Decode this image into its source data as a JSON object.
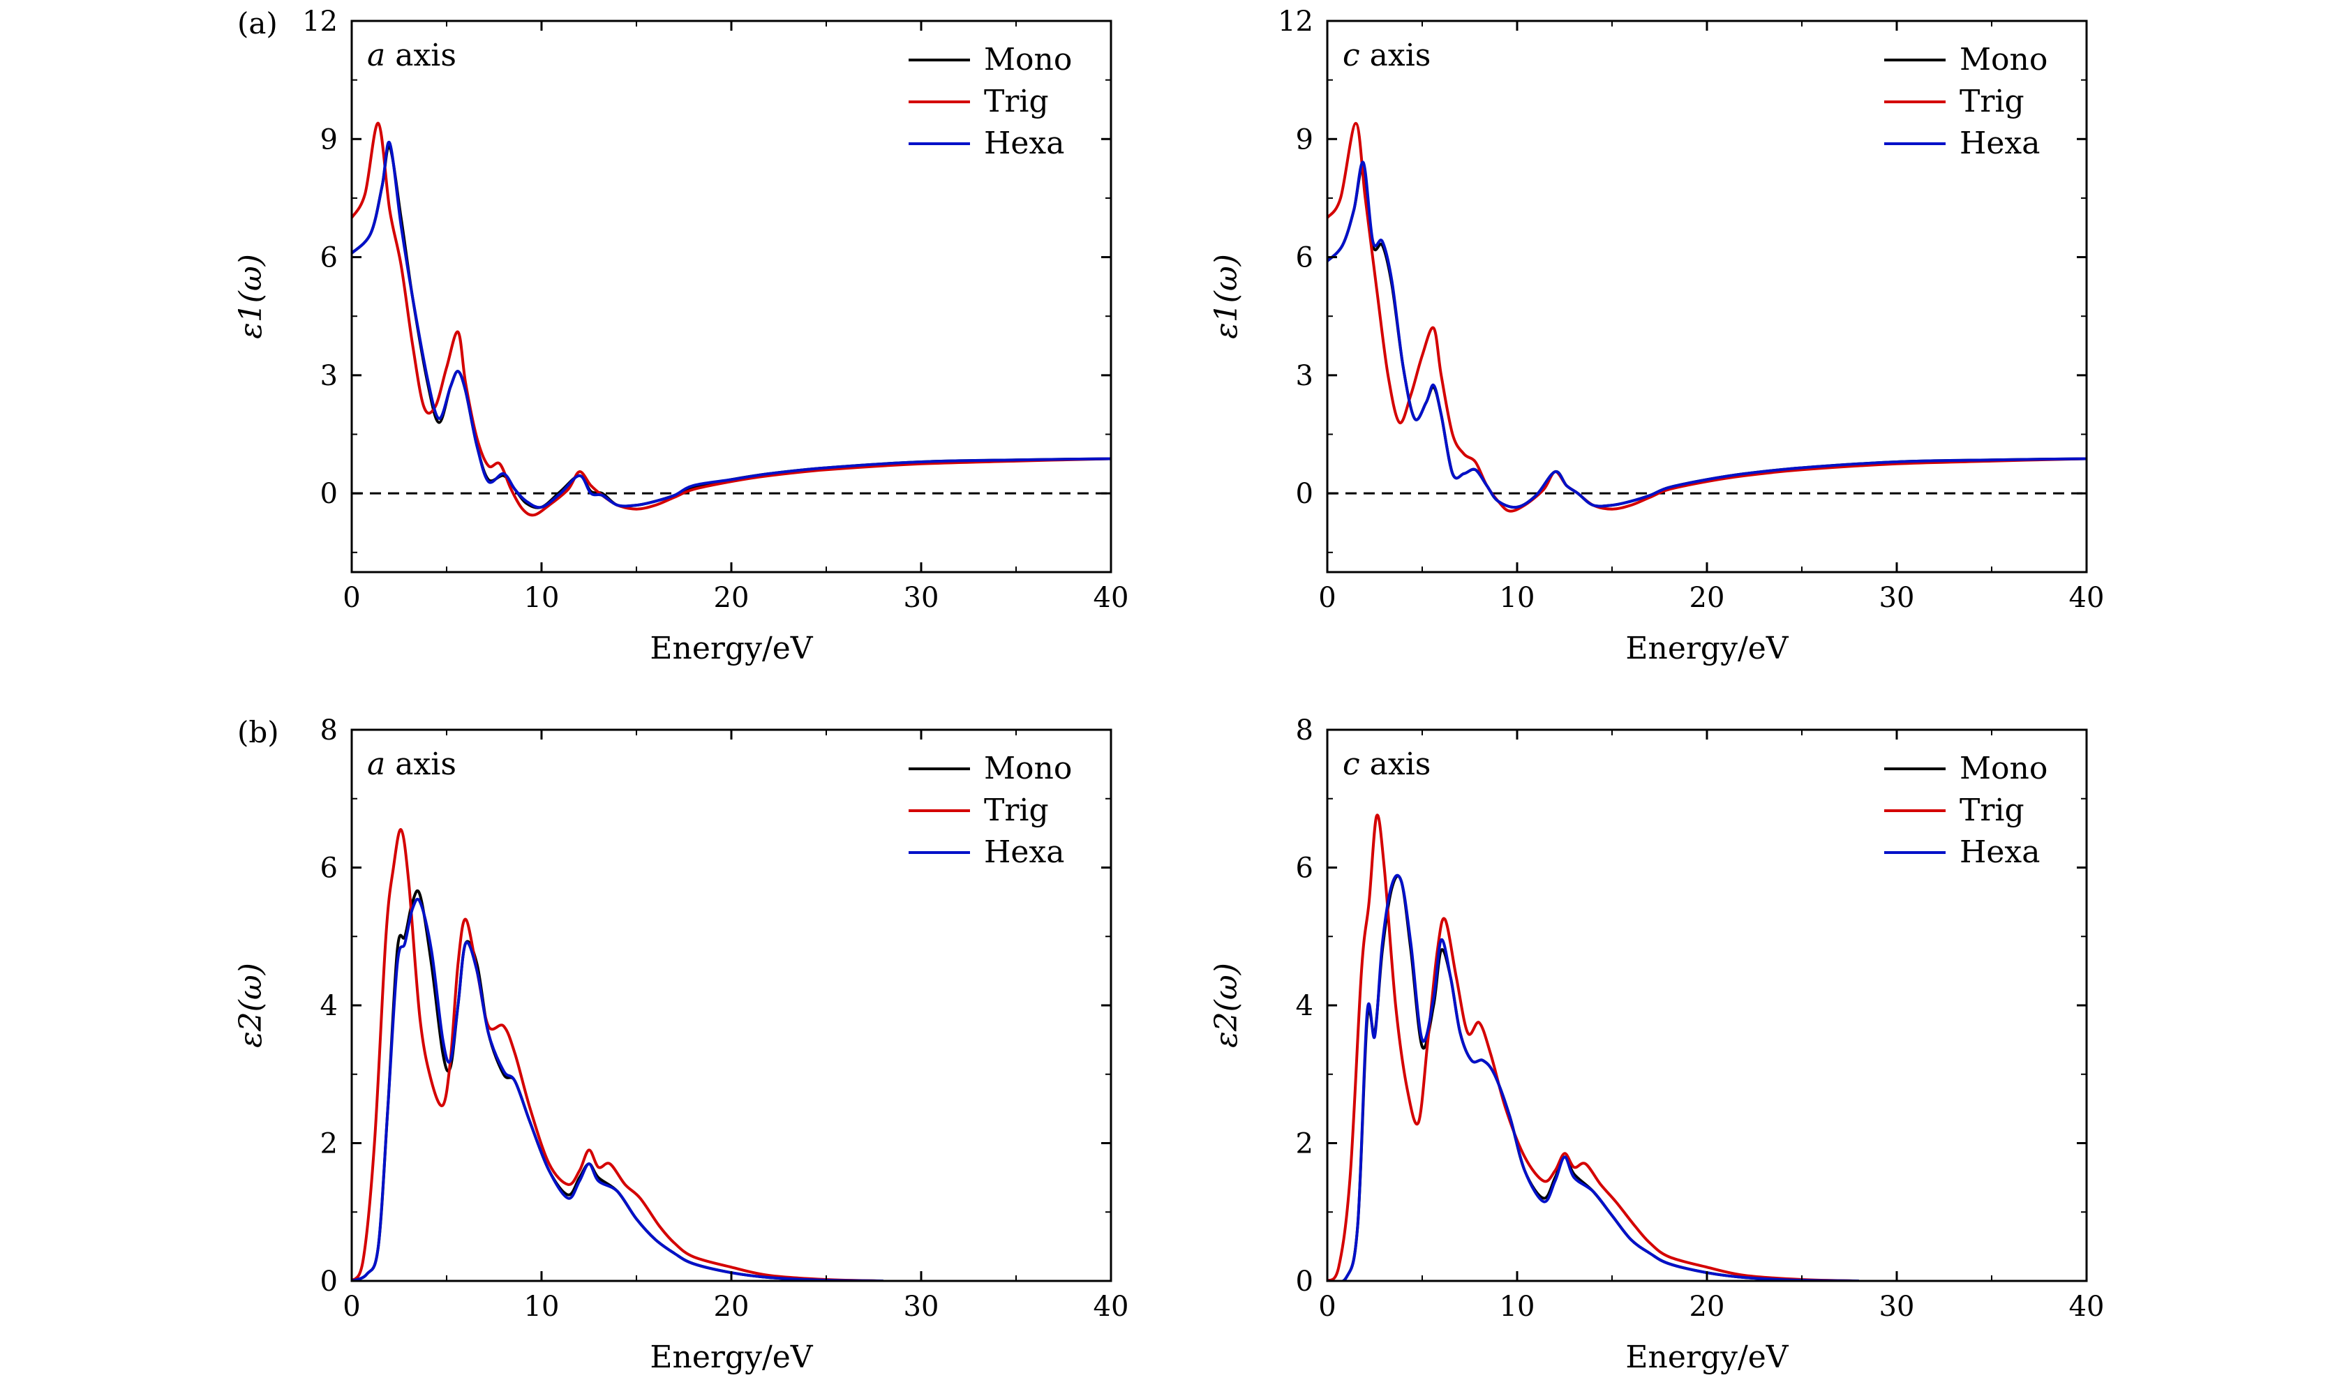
{
  "figure_labels": {
    "a": "(a)",
    "b": "(b)"
  },
  "legend": [
    {
      "name": "Mono",
      "color": "#000000"
    },
    {
      "name": "Trig",
      "color": "#d40000"
    },
    {
      "name": "Hexa",
      "color": "#0010c8"
    }
  ],
  "chart_data": [
    {
      "type": "line",
      "caption_italic": "a",
      "caption_rest": " axis",
      "xlabel": "Energy/eV",
      "ylabel": "ε1(ω)",
      "xlim": [
        0,
        40
      ],
      "ylim": [
        -2,
        12
      ],
      "xticks": [
        "0",
        "10",
        "20",
        "30",
        "40"
      ],
      "yticks": [
        "0",
        "3",
        "6",
        "9",
        "12"
      ],
      "reference_line_y": 0,
      "series": [
        {
          "name": "Mono",
          "x": [
            0,
            1,
            1.6,
            2,
            2.6,
            3.2,
            4,
            4.6,
            5.2,
            5.6,
            6,
            6.6,
            7.2,
            8,
            8.6,
            9.2,
            10,
            11,
            12,
            12.6,
            13.2,
            14,
            15,
            16,
            17,
            18,
            20,
            22,
            25,
            30,
            35,
            40
          ],
          "y": [
            6.1,
            6.6,
            7.8,
            8.8,
            7.0,
            5.0,
            2.8,
            1.8,
            2.7,
            3.1,
            2.6,
            1.2,
            0.35,
            0.45,
            0.1,
            -0.25,
            -0.35,
            0.05,
            0.45,
            0.05,
            0.0,
            -0.3,
            -0.3,
            -0.2,
            -0.05,
            0.15,
            0.35,
            0.5,
            0.65,
            0.8,
            0.85,
            0.88
          ]
        },
        {
          "name": "Trig",
          "x": [
            0,
            0.7,
            1.4,
            2,
            2.6,
            3.2,
            3.8,
            4.4,
            5,
            5.6,
            6,
            6.6,
            7.2,
            7.8,
            8.4,
            9,
            9.6,
            10.4,
            11.4,
            12,
            12.6,
            13.2,
            14,
            15,
            16,
            17,
            18,
            20,
            22,
            25,
            30,
            35,
            40
          ],
          "y": [
            7.0,
            7.6,
            9.4,
            7.2,
            5.8,
            3.8,
            2.2,
            2.2,
            3.2,
            4.1,
            2.8,
            1.4,
            0.7,
            0.75,
            0.1,
            -0.4,
            -0.55,
            -0.3,
            0.1,
            0.55,
            0.2,
            -0.05,
            -0.3,
            -0.4,
            -0.3,
            -0.1,
            0.1,
            0.3,
            0.45,
            0.6,
            0.75,
            0.82,
            0.88
          ]
        },
        {
          "name": "Hexa",
          "x": [
            0,
            1,
            1.6,
            2,
            2.6,
            3.2,
            4,
            4.6,
            5.2,
            5.6,
            6,
            6.6,
            7.2,
            8,
            8.6,
            9.2,
            10,
            11,
            12,
            12.6,
            13.2,
            14,
            15,
            16,
            17,
            18,
            20,
            22,
            25,
            30,
            35,
            40
          ],
          "y": [
            6.1,
            6.6,
            7.8,
            8.9,
            6.8,
            5.0,
            2.9,
            1.9,
            2.7,
            3.1,
            2.6,
            1.2,
            0.3,
            0.5,
            0.1,
            -0.2,
            -0.35,
            0.0,
            0.45,
            0.0,
            -0.05,
            -0.3,
            -0.3,
            -0.2,
            -0.05,
            0.2,
            0.35,
            0.5,
            0.65,
            0.8,
            0.85,
            0.88
          ]
        }
      ]
    },
    {
      "type": "line",
      "caption_italic": "c",
      "caption_rest": " axis",
      "xlabel": "Energy/eV",
      "ylabel": "ε1(ω)",
      "xlim": [
        0,
        40
      ],
      "ylim": [
        -2,
        12
      ],
      "xticks": [
        "0",
        "10",
        "20",
        "30",
        "40"
      ],
      "yticks": [
        "0",
        "3",
        "6",
        "9",
        "12"
      ],
      "reference_line_y": 0,
      "series": [
        {
          "name": "Mono",
          "x": [
            0,
            0.8,
            1.4,
            1.9,
            2.4,
            2.9,
            3.4,
            4,
            4.6,
            5.2,
            5.6,
            6,
            6.6,
            7.2,
            7.8,
            8.4,
            9,
            10,
            11,
            12,
            12.6,
            13.2,
            14,
            15,
            16,
            17,
            18,
            20,
            22,
            25,
            30,
            35,
            40
          ],
          "y": [
            5.9,
            6.3,
            7.2,
            8.3,
            6.3,
            6.3,
            5.3,
            3.2,
            1.9,
            2.3,
            2.7,
            2.0,
            0.5,
            0.5,
            0.6,
            0.2,
            -0.2,
            -0.35,
            -0.05,
            0.55,
            0.2,
            0.0,
            -0.3,
            -0.3,
            -0.2,
            -0.05,
            0.15,
            0.35,
            0.5,
            0.65,
            0.8,
            0.85,
            0.88
          ]
        },
        {
          "name": "Trig",
          "x": [
            0,
            0.7,
            1.5,
            2,
            2.6,
            3.2,
            3.8,
            4.4,
            5,
            5.6,
            6,
            6.6,
            7.2,
            7.8,
            8.4,
            9,
            9.6,
            10.4,
            11.4,
            12,
            12.6,
            13.2,
            14,
            15,
            16,
            17,
            18,
            20,
            22,
            25,
            30,
            35,
            40
          ],
          "y": [
            7.0,
            7.5,
            9.4,
            7.5,
            5.2,
            3.0,
            1.8,
            2.5,
            3.5,
            4.2,
            3.0,
            1.5,
            1.0,
            0.8,
            0.2,
            -0.2,
            -0.45,
            -0.3,
            0.1,
            0.55,
            0.2,
            0.0,
            -0.3,
            -0.4,
            -0.3,
            -0.1,
            0.1,
            0.3,
            0.45,
            0.6,
            0.75,
            0.82,
            0.88
          ]
        },
        {
          "name": "Hexa",
          "x": [
            0,
            0.8,
            1.4,
            1.9,
            2.4,
            2.9,
            3.4,
            4,
            4.6,
            5.2,
            5.6,
            6,
            6.6,
            7.2,
            7.8,
            8.4,
            9,
            10,
            11,
            12,
            12.6,
            13.2,
            14,
            15,
            16,
            17,
            18,
            20,
            22,
            25,
            30,
            35,
            40
          ],
          "y": [
            5.9,
            6.3,
            7.2,
            8.4,
            6.4,
            6.4,
            5.4,
            3.2,
            1.9,
            2.3,
            2.75,
            2.0,
            0.5,
            0.5,
            0.6,
            0.2,
            -0.2,
            -0.35,
            -0.05,
            0.55,
            0.2,
            0.0,
            -0.3,
            -0.3,
            -0.2,
            -0.05,
            0.15,
            0.35,
            0.5,
            0.65,
            0.8,
            0.85,
            0.88
          ]
        }
      ]
    },
    {
      "type": "line",
      "caption_italic": "a",
      "caption_rest": " axis",
      "xlabel": "Energy/eV",
      "ylabel": "ε2(ω)",
      "xlim": [
        0,
        40
      ],
      "ylim": [
        0,
        8
      ],
      "xticks": [
        "0",
        "10",
        "20",
        "30",
        "40"
      ],
      "yticks": [
        "0",
        "2",
        "4",
        "6",
        "8"
      ],
      "series": [
        {
          "name": "Mono",
          "x": [
            0,
            0.8,
            1.4,
            1.9,
            2.4,
            2.8,
            3.2,
            3.6,
            4.2,
            4.8,
            5.2,
            5.6,
            6,
            6.6,
            7.2,
            8,
            8.6,
            9.4,
            10.4,
            11.4,
            12,
            12.5,
            13,
            14,
            15,
            16,
            17,
            18,
            20,
            22,
            25,
            28
          ],
          "y": [
            0,
            0.1,
            0.5,
            2.5,
            4.8,
            5.0,
            5.5,
            5.6,
            4.6,
            3.3,
            3.1,
            4.0,
            4.9,
            4.6,
            3.6,
            3.0,
            2.9,
            2.3,
            1.6,
            1.25,
            1.5,
            1.7,
            1.5,
            1.3,
            0.9,
            0.6,
            0.4,
            0.25,
            0.12,
            0.05,
            0.01,
            0
          ]
        },
        {
          "name": "Trig",
          "x": [
            0,
            0.6,
            1.2,
            1.8,
            2.2,
            2.6,
            3,
            3.6,
            4.2,
            4.8,
            5.2,
            5.6,
            6,
            6.6,
            7.2,
            8,
            8.6,
            9.4,
            10.4,
            11.4,
            12,
            12.5,
            13,
            13.6,
            14.4,
            15.2,
            16.2,
            17,
            18,
            20,
            22,
            25,
            28
          ],
          "y": [
            0,
            0.3,
            2.0,
            5.0,
            6.0,
            6.55,
            5.8,
            3.8,
            2.9,
            2.55,
            3.2,
            4.6,
            5.25,
            4.5,
            3.7,
            3.7,
            3.3,
            2.5,
            1.7,
            1.4,
            1.6,
            1.9,
            1.65,
            1.7,
            1.4,
            1.2,
            0.8,
            0.55,
            0.35,
            0.2,
            0.08,
            0.02,
            0
          ]
        },
        {
          "name": "Hexa",
          "x": [
            0,
            0.8,
            1.4,
            1.9,
            2.4,
            2.8,
            3.2,
            3.6,
            4.2,
            4.8,
            5.2,
            5.6,
            6,
            6.6,
            7.2,
            8,
            8.6,
            9.4,
            10.4,
            11.4,
            12,
            12.5,
            13,
            14,
            15,
            16,
            17,
            18,
            20,
            22,
            25,
            28
          ],
          "y": [
            0,
            0.1,
            0.5,
            2.5,
            4.6,
            4.9,
            5.4,
            5.5,
            4.8,
            3.5,
            3.2,
            4.0,
            4.9,
            4.5,
            3.6,
            3.05,
            2.9,
            2.3,
            1.6,
            1.2,
            1.45,
            1.7,
            1.45,
            1.3,
            0.9,
            0.6,
            0.4,
            0.25,
            0.12,
            0.05,
            0.01,
            0
          ]
        }
      ]
    },
    {
      "type": "line",
      "caption_italic": "c",
      "caption_rest": " axis",
      "xlabel": "Energy/eV",
      "ylabel": "ε2(ω)",
      "xlim": [
        0,
        40
      ],
      "ylim": [
        0,
        8
      ],
      "xticks": [
        "0",
        "10",
        "20",
        "30",
        "40"
      ],
      "yticks": [
        "0",
        "2",
        "4",
        "6",
        "8"
      ],
      "series": [
        {
          "name": "Mono",
          "x": [
            0,
            1,
            1.6,
            2.1,
            2.5,
            2.9,
            3.4,
            3.9,
            4.4,
            5,
            5.6,
            6,
            6.5,
            7,
            7.6,
            8.2,
            8.8,
            9.6,
            10.4,
            11.4,
            12,
            12.5,
            13,
            14,
            15,
            16,
            17,
            18,
            20,
            22,
            25,
            28
          ],
          "y": [
            0,
            0.05,
            0.8,
            3.8,
            3.6,
            4.8,
            5.7,
            5.8,
            4.8,
            3.4,
            4.0,
            4.8,
            4.4,
            3.6,
            3.2,
            3.2,
            3.0,
            2.4,
            1.6,
            1.2,
            1.5,
            1.8,
            1.55,
            1.3,
            0.95,
            0.6,
            0.4,
            0.25,
            0.12,
            0.05,
            0.01,
            0
          ]
        },
        {
          "name": "Trig",
          "x": [
            0,
            0.6,
            1.2,
            1.8,
            2.2,
            2.6,
            3,
            3.6,
            4.2,
            4.8,
            5.3,
            5.8,
            6.2,
            6.8,
            7.4,
            8,
            8.6,
            9.4,
            10.4,
            11.4,
            12,
            12.5,
            13,
            13.6,
            14.4,
            15.2,
            16.2,
            17,
            18,
            20,
            22,
            25,
            28
          ],
          "y": [
            0,
            0.2,
            1.5,
            4.5,
            5.5,
            6.75,
            6.0,
            4.0,
            2.8,
            2.3,
            3.5,
            4.8,
            5.25,
            4.4,
            3.6,
            3.75,
            3.3,
            2.5,
            1.8,
            1.45,
            1.6,
            1.85,
            1.65,
            1.7,
            1.4,
            1.15,
            0.8,
            0.55,
            0.35,
            0.2,
            0.08,
            0.02,
            0
          ]
        },
        {
          "name": "Hexa",
          "x": [
            0,
            1,
            1.6,
            2.1,
            2.5,
            2.9,
            3.4,
            3.9,
            4.4,
            5,
            5.6,
            6,
            6.5,
            7,
            7.6,
            8.2,
            8.8,
            9.6,
            10.4,
            11.4,
            12,
            12.5,
            13,
            14,
            15,
            16,
            17,
            18,
            20,
            22,
            25,
            28
          ],
          "y": [
            0,
            0.05,
            0.8,
            3.9,
            3.55,
            4.9,
            5.75,
            5.8,
            4.9,
            3.5,
            4.1,
            4.95,
            4.4,
            3.6,
            3.2,
            3.2,
            3.0,
            2.4,
            1.6,
            1.15,
            1.45,
            1.8,
            1.5,
            1.3,
            0.95,
            0.6,
            0.4,
            0.25,
            0.12,
            0.05,
            0.01,
            0
          ]
        }
      ]
    }
  ]
}
